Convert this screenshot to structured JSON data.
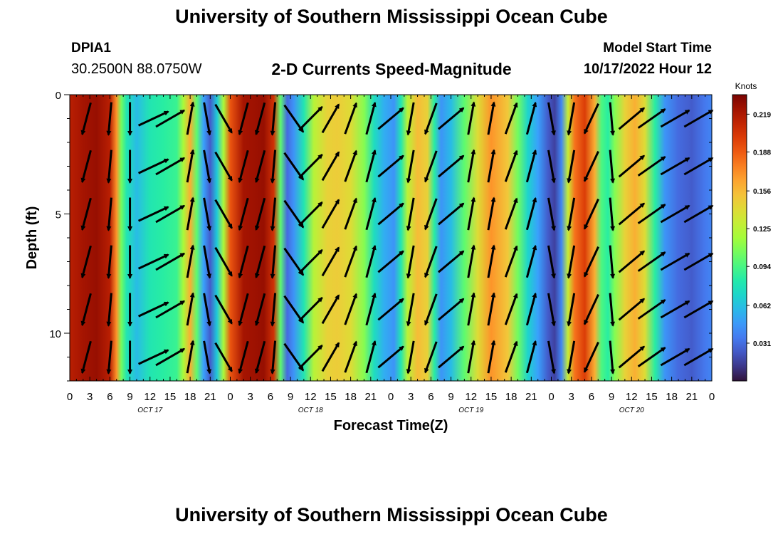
{
  "header": {
    "title": "University of Southern Mississippi Ocean Cube",
    "station_id": "DPIA1",
    "coords": "30.2500N  88.0750W",
    "plot_title": "2-D Currents Speed-Magnitude",
    "start_label": "Model Start Time",
    "start_value": "10/17/2022 Hour 12"
  },
  "footer": {
    "title": "University of Southern Mississippi Ocean Cube"
  },
  "chart_data": {
    "type": "heatmap",
    "title": "2-D Currents Speed-Magnitude",
    "xlabel": "Forecast Time(Z)",
    "ylabel": "Depth (ft)",
    "x_tick_labels": [
      "0",
      "3",
      "6",
      "9",
      "12",
      "15",
      "18",
      "21",
      "0",
      "3",
      "6",
      "9",
      "12",
      "15",
      "18",
      "21",
      "0",
      "3",
      "6",
      "9",
      "12",
      "15",
      "18",
      "21",
      "0",
      "3",
      "6",
      "9",
      "12",
      "15",
      "18",
      "21",
      "0"
    ],
    "x_hours": [
      0,
      3,
      6,
      9,
      12,
      15,
      18,
      21,
      24,
      27,
      30,
      33,
      36,
      39,
      42,
      45,
      48,
      51,
      54,
      57,
      60,
      63,
      66,
      69,
      72,
      75,
      78,
      81,
      84,
      87,
      90,
      93,
      96
    ],
    "date_labels": [
      {
        "label": "OCT 17",
        "hour": 12
      },
      {
        "label": "OCT 18",
        "hour": 36
      },
      {
        "label": "OCT 19",
        "hour": 60
      },
      {
        "label": "OCT 20",
        "hour": 84
      }
    ],
    "xlim": [
      0,
      96
    ],
    "y_ticks": [
      0,
      5,
      10
    ],
    "ylim": [
      0,
      12
    ],
    "y_inverted": true,
    "colorbar": {
      "label": "Knots",
      "ticks": [
        "0.219",
        "0.188",
        "0.156",
        "0.125",
        "0.094",
        "0.062",
        "0.031"
      ],
      "tick_values": [
        0.219,
        0.188,
        0.156,
        0.125,
        0.094,
        0.062,
        0.031
      ],
      "min": 0.0,
      "max": 0.235,
      "colors": [
        "#30123b",
        "#4145ab",
        "#4675ed",
        "#39a2fc",
        "#1bcfd4",
        "#24eca6",
        "#61fc6c",
        "#a4fc3b",
        "#d1e834",
        "#f3c63a",
        "#fe9b2d",
        "#f36315",
        "#d93806",
        "#b11901",
        "#7a0402"
      ]
    },
    "speed_profile": [
      {
        "hour": 0,
        "speed": 0.215
      },
      {
        "hour": 2,
        "speed": 0.222
      },
      {
        "hour": 4,
        "speed": 0.226
      },
      {
        "hour": 6,
        "speed": 0.215
      },
      {
        "hour": 7,
        "speed": 0.17
      },
      {
        "hour": 7.7,
        "speed": 0.105
      },
      {
        "hour": 8.5,
        "speed": 0.08
      },
      {
        "hour": 10,
        "speed": 0.06
      },
      {
        "hour": 12,
        "speed": 0.08
      },
      {
        "hour": 14,
        "speed": 0.085
      },
      {
        "hour": 16,
        "speed": 0.09
      },
      {
        "hour": 17,
        "speed": 0.12
      },
      {
        "hour": 18,
        "speed": 0.16
      },
      {
        "hour": 19,
        "speed": 0.1
      },
      {
        "hour": 20,
        "speed": 0.05
      },
      {
        "hour": 21,
        "speed": 0.025
      },
      {
        "hour": 22,
        "speed": 0.065
      },
      {
        "hour": 23,
        "speed": 0.12
      },
      {
        "hour": 24,
        "speed": 0.19
      },
      {
        "hour": 26,
        "speed": 0.222
      },
      {
        "hour": 29,
        "speed": 0.226
      },
      {
        "hour": 30.5,
        "speed": 0.205
      },
      {
        "hour": 31.5,
        "speed": 0.1
      },
      {
        "hour": 32.5,
        "speed": 0.03
      },
      {
        "hour": 33.5,
        "speed": 0.045
      },
      {
        "hour": 35,
        "speed": 0.08
      },
      {
        "hour": 36.5,
        "speed": 0.125
      },
      {
        "hour": 38.5,
        "speed": 0.145
      },
      {
        "hour": 40,
        "speed": 0.148
      },
      {
        "hour": 42,
        "speed": 0.14
      },
      {
        "hour": 44,
        "speed": 0.11
      },
      {
        "hour": 45.5,
        "speed": 0.075
      },
      {
        "hour": 47,
        "speed": 0.055
      },
      {
        "hour": 48.5,
        "speed": 0.045
      },
      {
        "hour": 49.5,
        "speed": 0.08
      },
      {
        "hour": 50.5,
        "speed": 0.125
      },
      {
        "hour": 52,
        "speed": 0.155
      },
      {
        "hour": 53.5,
        "speed": 0.145
      },
      {
        "hour": 54.5,
        "speed": 0.085
      },
      {
        "hour": 55.5,
        "speed": 0.045
      },
      {
        "hour": 57,
        "speed": 0.06
      },
      {
        "hour": 59,
        "speed": 0.1
      },
      {
        "hour": 61,
        "speed": 0.14
      },
      {
        "hour": 63,
        "speed": 0.17
      },
      {
        "hour": 65.5,
        "speed": 0.15
      },
      {
        "hour": 67,
        "speed": 0.105
      },
      {
        "hour": 68.5,
        "speed": 0.07
      },
      {
        "hour": 70,
        "speed": 0.05
      },
      {
        "hour": 71.5,
        "speed": 0.025
      },
      {
        "hour": 72.5,
        "speed": 0.015
      },
      {
        "hour": 73.5,
        "speed": 0.04
      },
      {
        "hour": 74.5,
        "speed": 0.13
      },
      {
        "hour": 75.5,
        "speed": 0.18
      },
      {
        "hour": 77,
        "speed": 0.2
      },
      {
        "hour": 78.5,
        "speed": 0.16
      },
      {
        "hour": 79.5,
        "speed": 0.095
      },
      {
        "hour": 80.5,
        "speed": 0.085
      },
      {
        "hour": 81.5,
        "speed": 0.11
      },
      {
        "hour": 83,
        "speed": 0.145
      },
      {
        "hour": 84.5,
        "speed": 0.16
      },
      {
        "hour": 86,
        "speed": 0.14
      },
      {
        "hour": 87.5,
        "speed": 0.085
      },
      {
        "hour": 89,
        "speed": 0.045
      },
      {
        "hour": 91,
        "speed": 0.03
      },
      {
        "hour": 93,
        "speed": 0.025
      },
      {
        "hour": 95,
        "speed": 0.035
      },
      {
        "hour": 96,
        "speed": 0.04
      }
    ],
    "vectors": [
      {
        "hour": 2.5,
        "angle": 105
      },
      {
        "hour": 6,
        "angle": 95
      },
      {
        "hour": 9,
        "angle": 90
      },
      {
        "hour": 12.5,
        "angle": -25
      },
      {
        "hour": 15,
        "angle": -30
      },
      {
        "hour": 18,
        "angle": -80
      },
      {
        "hour": 20.5,
        "angle": 80
      },
      {
        "hour": 23,
        "angle": 60
      },
      {
        "hour": 26,
        "angle": 105
      },
      {
        "hour": 28.5,
        "angle": 105
      },
      {
        "hour": 30.5,
        "angle": 95
      },
      {
        "hour": 33.5,
        "angle": 55
      },
      {
        "hour": 36,
        "angle": -45
      },
      {
        "hour": 39,
        "angle": -60
      },
      {
        "hour": 42,
        "angle": -70
      },
      {
        "hour": 45,
        "angle": -75
      },
      {
        "hour": 48,
        "angle": -40
      },
      {
        "hour": 51,
        "angle": 100
      },
      {
        "hour": 54,
        "angle": 110
      },
      {
        "hour": 57,
        "angle": -40
      },
      {
        "hour": 60,
        "angle": -80
      },
      {
        "hour": 63,
        "angle": -80
      },
      {
        "hour": 66,
        "angle": -70
      },
      {
        "hour": 69,
        "angle": -75
      },
      {
        "hour": 72,
        "angle": 80
      },
      {
        "hour": 75,
        "angle": 100
      },
      {
        "hour": 78,
        "angle": 115
      },
      {
        "hour": 81,
        "angle": 85
      },
      {
        "hour": 84,
        "angle": -40
      },
      {
        "hour": 87,
        "angle": -35
      },
      {
        "hour": 90.5,
        "angle": -30
      },
      {
        "hour": 94,
        "angle": -30
      }
    ],
    "vector_depths": [
      1,
      3,
      5,
      7,
      9,
      11
    ]
  }
}
